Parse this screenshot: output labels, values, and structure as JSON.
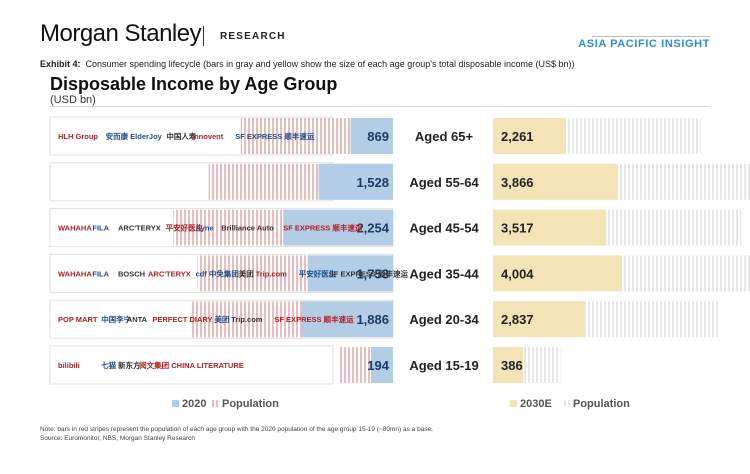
{
  "header": {
    "brand": "Morgan Stanley",
    "section": "RESEARCH",
    "series_badge": "ASIA PACIFIC INSIGHT"
  },
  "exhibit": {
    "label": "Exhibit 4:",
    "caption": "Consumer spending lifecycle (bars in gray and yellow show the size of each age group's total disposable income (US$ bn))"
  },
  "colors": {
    "blue_2020": "#b3cde6",
    "blue_text": "#1b3a66",
    "yellow_2030": "#f3e4b8",
    "red_stripe": "#e7b2b4",
    "row_border": "#e2e2e2"
  },
  "chart_data": {
    "type": "bar",
    "title": "Disposable Income by Age Group",
    "ylabel": "(USD bn)",
    "categories": [
      "Aged 65+",
      "Aged 55-64",
      "Aged 45-54",
      "Aged 35-44",
      "Aged 20-34",
      "Aged 15-19"
    ],
    "series": [
      {
        "name": "2020",
        "values": [
          869,
          1528,
          2254,
          1753,
          1886,
          194
        ]
      },
      {
        "name": "2030E",
        "values": [
          2261,
          3866,
          3517,
          4004,
          2837,
          386
        ]
      }
    ],
    "row_logos": [
      [
        "HLH Group",
        "安而康 ElderJoy",
        "中国人寿",
        "Innovent",
        "SF EXPRESS 顺丰速运"
      ],
      [],
      [
        "WAHAHA",
        "FILA",
        "ARC'TERYX",
        "平安好医生",
        "Ayne",
        "Brilliance Auto",
        "SF EXPRESS 顺丰速运"
      ],
      [
        "WAHAHA",
        "FILA",
        "BOSCH",
        "ARC'TERYX",
        "cdf 中免集团",
        "美团",
        "Trip.com",
        "平安好医生",
        "SF EXPRESS 顺丰速运"
      ],
      [
        "POP MART",
        "中国李宁",
        "ANTA",
        "PERFECT DIARY",
        "美团",
        "Trip.com",
        "SF EXPRESS 顺丰速运"
      ],
      [
        "bilibili",
        "七猫",
        "新东方",
        "阅文集团 CHINA LITERATURE"
      ]
    ],
    "legend_left": [
      "2020",
      "Population"
    ],
    "legend_right": [
      "2030E",
      "Population"
    ]
  },
  "footer": {
    "note": "Note: bars in red stripes represent the population of each age group with the 2020 population of the age group 15-19 (~80mn) as a base.",
    "source": "Source: Euromonitor, NBS, Morgan Stanley Research"
  }
}
